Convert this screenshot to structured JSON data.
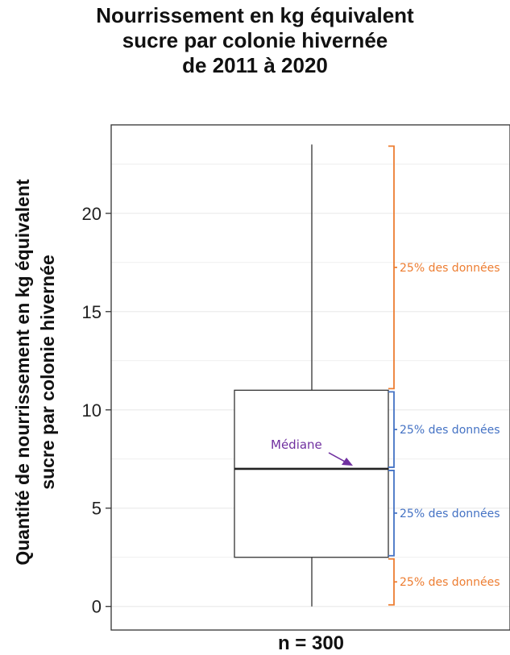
{
  "chart_data": {
    "type": "boxplot",
    "title_lines": [
      "Nourrissement en kg équivalent",
      "sucre par colonie hivernée",
      "de 2011 à 2020"
    ],
    "ylabel_lines": [
      "Quantité de nourrissement en kg équivalent",
      "sucre par colonie hivernée"
    ],
    "xlabel": "n = 300",
    "yticks": [
      0,
      5,
      10,
      15,
      20
    ],
    "ylim": [
      -1.2,
      24.5
    ],
    "grid": true,
    "box": {
      "min": 0,
      "q1": 2.5,
      "median": 7,
      "q3": 11,
      "max": 23.5
    },
    "annotations": {
      "median_label": "Médiane",
      "quartile_label": "25% des données",
      "colors": {
        "orange": "#ed7d31",
        "blue": "#4472c4",
        "purple": "#7030a0"
      }
    }
  }
}
